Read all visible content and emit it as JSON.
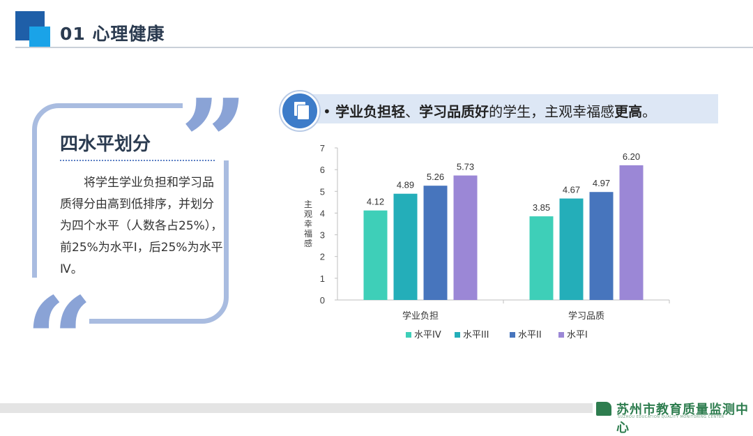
{
  "header": {
    "title": "01  心理健康"
  },
  "card": {
    "title": "四水平划分",
    "text": "将学生学业负担和学习品质得分由高到低排序，并划分为四个水平（人数各占25%），前25%为水平Ⅰ，后25%为水平Ⅳ。"
  },
  "banner": {
    "bullet": "•",
    "part1": "学业负担轻",
    "part2": "、",
    "part3": "学习品质好",
    "part4": "的学生，主观幸福感",
    "part5": "更高",
    "part6": "。"
  },
  "chart_data": {
    "type": "bar",
    "categories": [
      "学业负担",
      "学习品质"
    ],
    "series": [
      {
        "name": "水平IV",
        "values": [
          4.12,
          3.85
        ],
        "color": "#3ecfb8"
      },
      {
        "name": "水平III",
        "values": [
          4.89,
          4.67
        ],
        "color": "#24aeb9"
      },
      {
        "name": "水平II",
        "values": [
          5.26,
          4.97
        ],
        "color": "#4775bd"
      },
      {
        "name": "水平I",
        "values": [
          5.73,
          6.2
        ],
        "color": "#9b87d6"
      }
    ],
    "ylabel": "主观幸福感",
    "ylim": [
      0,
      7
    ],
    "yticks": [
      0,
      1,
      2,
      3,
      4,
      5,
      6,
      7
    ],
    "legend_position": "bottom",
    "grid": false
  },
  "footer": {
    "org_name": "苏州市教育质量监测中心",
    "org_name_en": "SUZHOU EDUCATION QUALITY MONITORING CENTER"
  }
}
